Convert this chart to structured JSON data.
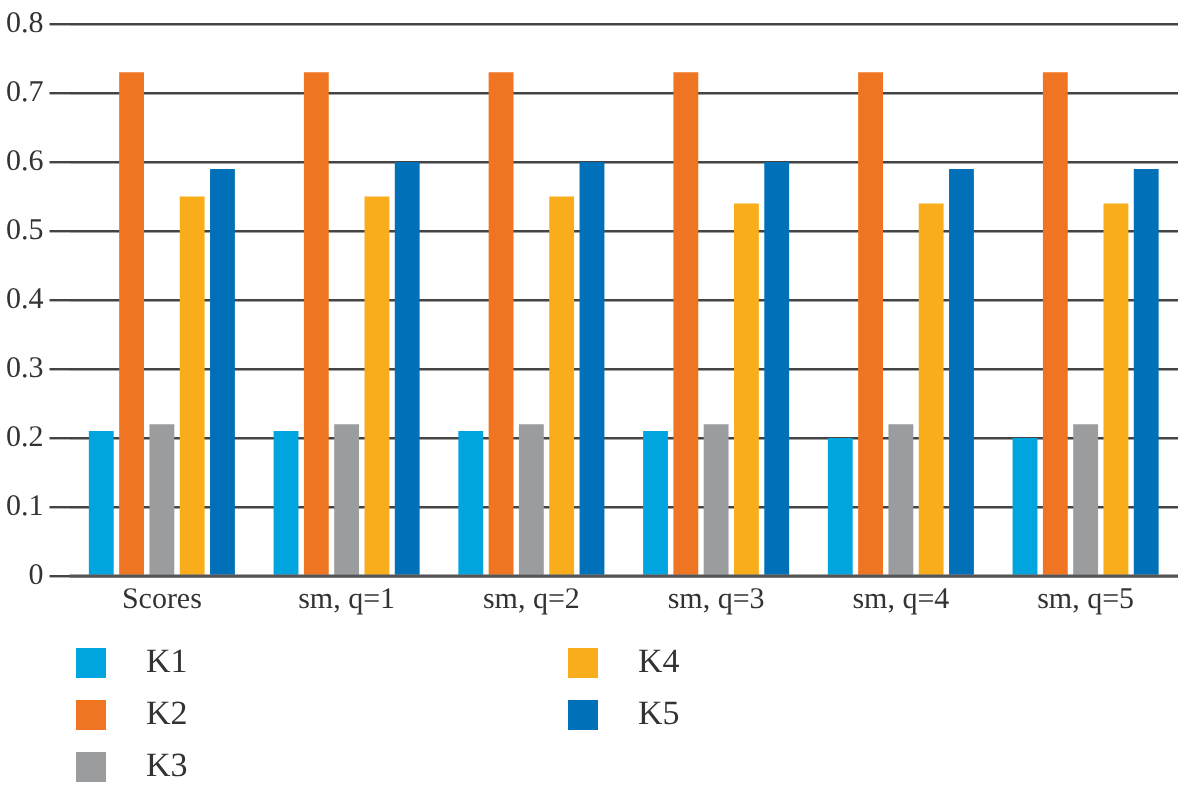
{
  "chart_data": {
    "type": "bar",
    "categories": [
      "Scores",
      "sm, q=1",
      "sm, q=2",
      "sm, q=3",
      "sm, q=4",
      "sm, q=5"
    ],
    "series": [
      {
        "name": "K1",
        "color": "#00a5e0",
        "values": [
          0.21,
          0.21,
          0.21,
          0.21,
          0.2,
          0.2
        ]
      },
      {
        "name": "K2",
        "color": "#f07522",
        "values": [
          0.73,
          0.73,
          0.73,
          0.73,
          0.73,
          0.73
        ]
      },
      {
        "name": "K3",
        "color": "#9a9c9e",
        "values": [
          0.22,
          0.22,
          0.22,
          0.22,
          0.22,
          0.22
        ]
      },
      {
        "name": "K4",
        "color": "#f9ad1a",
        "values": [
          0.55,
          0.55,
          0.55,
          0.54,
          0.54,
          0.54
        ]
      },
      {
        "name": "K5",
        "color": "#0070b8",
        "values": [
          0.59,
          0.6,
          0.6,
          0.6,
          0.59,
          0.59
        ]
      }
    ],
    "ylim": [
      0,
      0.8
    ],
    "yticks": [
      0,
      0.1,
      0.2,
      0.3,
      0.4,
      0.5,
      0.6,
      0.7,
      0.8
    ],
    "grid": "y",
    "legend": "bottom"
  }
}
